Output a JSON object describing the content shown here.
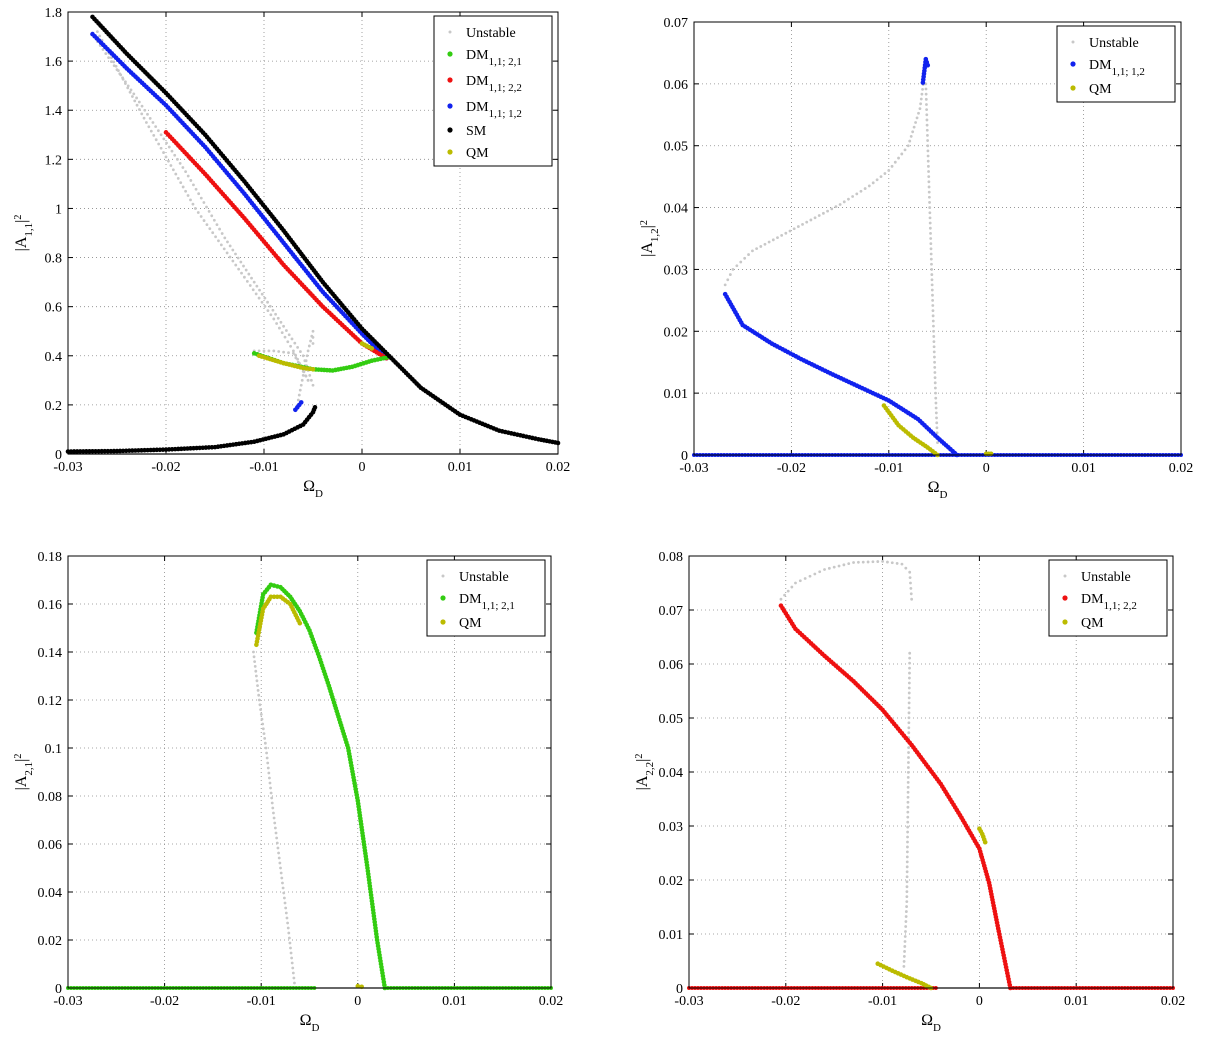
{
  "colors": {
    "unstable": "#c8c8c8",
    "dm_21": "#33cc11",
    "dm_22": "#ee1111",
    "dm_12": "#1122ee",
    "sm": "#000000",
    "qm": "#bbbb00"
  },
  "chart_data": [
    {
      "type": "scatter",
      "xlim": [
        -0.03,
        0.02
      ],
      "ylim": [
        0,
        1.8
      ],
      "x_ticks": [
        "-0.03",
        "-0.02",
        "-0.01",
        "0",
        "0.01",
        "0.02"
      ],
      "y_ticks": [
        "0",
        "0.2",
        "0.4",
        "0.6",
        "0.8",
        "1",
        "1.2",
        "1.4",
        "1.6",
        "1.8"
      ],
      "ylabel": {
        "pre": "|A",
        "sub": "1,1",
        "post": "|",
        "sup": "2"
      },
      "xlabel": {
        "pre": "Ω",
        "sub": "D"
      },
      "grid": true,
      "legend_position": "top-right",
      "legend": [
        {
          "pre": "Unstable",
          "sub": "",
          "color": "#c8c8c8",
          "marker": "small"
        },
        {
          "pre": "DM",
          "sub": "1,1; 2,1",
          "color": "#33cc11",
          "marker": "dot"
        },
        {
          "pre": "DM",
          "sub": "1,1; 2,2",
          "color": "#ee1111",
          "marker": "dot"
        },
        {
          "pre": "DM",
          "sub": "1,1; 1,2",
          "color": "#1122ee",
          "marker": "dot"
        },
        {
          "pre": "SM",
          "sub": "",
          "color": "#000000",
          "marker": "dot"
        },
        {
          "pre": "QM",
          "sub": "",
          "color": "#bbbb00",
          "marker": "dot"
        }
      ],
      "series": [
        {
          "color": "#c8c8c8",
          "size": 1.4,
          "x": [
            -0.027,
            -0.022,
            -0.017,
            -0.012,
            -0.009,
            -0.007,
            -0.0055
          ],
          "y": [
            1.72,
            1.35,
            1.0,
            0.72,
            0.55,
            0.42,
            0.3
          ]
        },
        {
          "color": "#c8c8c8",
          "size": 1.4,
          "x": [
            -0.027,
            -0.023,
            -0.018,
            -0.014,
            -0.011,
            -0.008,
            -0.006,
            -0.005
          ],
          "y": [
            1.68,
            1.45,
            1.15,
            0.88,
            0.7,
            0.52,
            0.4,
            0.28
          ]
        },
        {
          "color": "#c8c8c8",
          "size": 1.4,
          "x": [
            -0.011,
            -0.009,
            -0.007,
            -0.0055
          ],
          "y": [
            0.42,
            0.42,
            0.41,
            0.3
          ]
        },
        {
          "color": "#c8c8c8",
          "size": 1.4,
          "x": [
            -0.0065,
            -0.006,
            -0.0055,
            -0.005,
            -0.005
          ],
          "y": [
            0.22,
            0.32,
            0.42,
            0.5,
            0.45
          ]
        },
        {
          "color": "#1122ee",
          "size": 2.3,
          "x": [
            -0.0275,
            -0.024,
            -0.02,
            -0.016,
            -0.012,
            -0.008,
            -0.004,
            0.0,
            0.0025
          ],
          "y": [
            1.71,
            1.57,
            1.42,
            1.25,
            1.06,
            0.86,
            0.66,
            0.49,
            0.39
          ]
        },
        {
          "color": "#1122ee",
          "size": 2.3,
          "x": [
            -0.0068,
            -0.0062
          ],
          "y": [
            0.18,
            0.21
          ]
        },
        {
          "color": "#ee1111",
          "size": 2.3,
          "x": [
            -0.02,
            -0.016,
            -0.012,
            -0.008,
            -0.004,
            0.0,
            0.0025
          ],
          "y": [
            1.31,
            1.14,
            0.96,
            0.77,
            0.6,
            0.45,
            0.39
          ]
        },
        {
          "color": "#33cc11",
          "size": 2.3,
          "x": [
            -0.011,
            -0.008,
            -0.005,
            -0.003,
            -0.001,
            0.001,
            0.0028
          ],
          "y": [
            0.41,
            0.37,
            0.345,
            0.34,
            0.355,
            0.38,
            0.395
          ]
        },
        {
          "color": "#bbbb00",
          "size": 2.3,
          "x": [
            -0.0105,
            -0.008,
            -0.006,
            -0.005
          ],
          "y": [
            0.4,
            0.37,
            0.35,
            0.345
          ]
        },
        {
          "color": "#bbbb00",
          "size": 2.3,
          "x": [
            0.0,
            0.0005,
            0.001
          ],
          "y": [
            0.45,
            0.44,
            0.43
          ]
        },
        {
          "color": "#000000",
          "size": 2.3,
          "x": [
            -0.0275,
            -0.024,
            -0.02,
            -0.016,
            -0.012,
            -0.008,
            -0.004,
            0.0,
            0.003,
            0.006,
            0.01,
            0.014,
            0.018,
            0.02
          ],
          "y": [
            1.78,
            1.63,
            1.47,
            1.3,
            1.11,
            0.91,
            0.7,
            0.51,
            0.39,
            0.27,
            0.16,
            0.095,
            0.06,
            0.045
          ]
        },
        {
          "color": "#000000",
          "size": 2.3,
          "x": [
            -0.03,
            -0.025,
            -0.02,
            -0.015,
            -0.011,
            -0.008,
            -0.006,
            -0.005,
            -0.0048
          ],
          "y": [
            0.01,
            0.012,
            0.018,
            0.028,
            0.05,
            0.08,
            0.12,
            0.17,
            0.19
          ]
        }
      ]
    },
    {
      "type": "scatter",
      "xlim": [
        -0.03,
        0.02
      ],
      "ylim": [
        0,
        0.07
      ],
      "x_ticks": [
        "-0.03",
        "-0.02",
        "-0.01",
        "0",
        "0.01",
        "0.02"
      ],
      "y_ticks": [
        "0",
        "0.01",
        "0.02",
        "0.03",
        "0.04",
        "0.05",
        "0.06",
        "0.07"
      ],
      "ylabel": {
        "pre": "|A",
        "sub": "1,2",
        "post": "|",
        "sup": "2"
      },
      "xlabel": {
        "pre": "Ω",
        "sub": "D"
      },
      "grid": true,
      "legend_position": "top-right",
      "legend": [
        {
          "pre": "Unstable",
          "sub": "",
          "color": "#c8c8c8",
          "marker": "small"
        },
        {
          "pre": "DM",
          "sub": "1,1; 1,2",
          "color": "#1122ee",
          "marker": "dot"
        },
        {
          "pre": "QM",
          "sub": "",
          "color": "#bbbb00",
          "marker": "dot"
        }
      ],
      "series": [
        {
          "color": "#c8c8c8",
          "size": 1.4,
          "x": [
            -0.0268,
            -0.026,
            -0.024,
            -0.021,
            -0.018,
            -0.015,
            -0.012,
            -0.01,
            -0.008,
            -0.0068,
            -0.0062
          ],
          "y": [
            0.0275,
            0.03,
            0.033,
            0.0355,
            0.038,
            0.0405,
            0.0435,
            0.046,
            0.05,
            0.056,
            0.063
          ]
        },
        {
          "color": "#c8c8c8",
          "size": 1.4,
          "x": [
            -0.0062,
            -0.006,
            -0.0058,
            -0.0056,
            -0.0054,
            -0.0052,
            -0.005
          ],
          "y": [
            0.06,
            0.05,
            0.04,
            0.03,
            0.02,
            0.01,
            0.002
          ]
        },
        {
          "color": "#1122ee",
          "size": 2.3,
          "x": [
            -0.0268,
            -0.025,
            -0.022,
            -0.019,
            -0.016,
            -0.013,
            -0.01,
            -0.007,
            -0.005,
            -0.003
          ],
          "y": [
            0.026,
            0.021,
            0.018,
            0.0155,
            0.0132,
            0.011,
            0.0088,
            0.0058,
            0.0028,
            0.0
          ]
        },
        {
          "color": "#1122ee",
          "size": 2.3,
          "x": [
            -0.0065,
            -0.0062,
            -0.006
          ],
          "y": [
            0.0602,
            0.064,
            0.063
          ]
        },
        {
          "color": "#1122ee",
          "size": 2.0,
          "x": [
            -0.03,
            0.02
          ],
          "y": [
            0.0,
            0.0
          ]
        },
        {
          "color": "#bbbb00",
          "size": 2.3,
          "x": [
            -0.0105,
            -0.009,
            -0.0075,
            -0.006,
            -0.005
          ],
          "y": [
            0.008,
            0.0048,
            0.0028,
            0.0012,
            0.0
          ]
        },
        {
          "color": "#bbbb00",
          "size": 2.3,
          "x": [
            0.0,
            0.0005
          ],
          "y": [
            0.0002,
            0.0002
          ]
        }
      ]
    },
    {
      "type": "scatter",
      "xlim": [
        -0.03,
        0.02
      ],
      "ylim": [
        0,
        0.18
      ],
      "x_ticks": [
        "-0.03",
        "-0.02",
        "-0.01",
        "0",
        "0.01",
        "0.02"
      ],
      "y_ticks": [
        "0",
        "0.02",
        "0.04",
        "0.06",
        "0.08",
        "0.1",
        "0.12",
        "0.14",
        "0.16",
        "0.18"
      ],
      "ylabel": {
        "pre": "|A",
        "sub": "2,1",
        "post": "|",
        "sup": "2"
      },
      "xlabel": {
        "pre": "Ω",
        "sub": "D"
      },
      "grid": true,
      "legend_position": "top-right",
      "legend": [
        {
          "pre": "Unstable",
          "sub": "",
          "color": "#c8c8c8",
          "marker": "small"
        },
        {
          "pre": "DM",
          "sub": "1,1; 2,1",
          "color": "#33cc11",
          "marker": "dot"
        },
        {
          "pre": "QM",
          "sub": "",
          "color": "#bbbb00",
          "marker": "dot"
        }
      ],
      "series": [
        {
          "color": "#c8c8c8",
          "size": 1.4,
          "x": [
            -0.0108,
            -0.0102,
            -0.0095,
            -0.0088,
            -0.008,
            -0.0072,
            -0.0065
          ],
          "y": [
            0.14,
            0.12,
            0.1,
            0.075,
            0.05,
            0.025,
            0.0
          ]
        },
        {
          "color": "#33cc11",
          "size": 2.3,
          "x": [
            -0.0105,
            -0.0098,
            -0.009,
            -0.008,
            -0.007,
            -0.006,
            -0.005,
            -0.004,
            -0.003,
            -0.002,
            -0.001,
            0.0,
            0.001,
            0.002,
            0.0028
          ],
          "y": [
            0.148,
            0.164,
            0.168,
            0.167,
            0.163,
            0.157,
            0.149,
            0.138,
            0.126,
            0.113,
            0.1,
            0.078,
            0.05,
            0.02,
            0.0
          ]
        },
        {
          "color": "#33cc11",
          "size": 2.0,
          "x": [
            -0.03,
            -0.0045
          ],
          "y": [
            0.0,
            0.0
          ]
        },
        {
          "color": "#33cc11",
          "size": 2.0,
          "x": [
            0.0028,
            0.02
          ],
          "y": [
            0.0,
            0.0
          ]
        },
        {
          "color": "#bbbb00",
          "size": 2.3,
          "x": [
            -0.0105,
            -0.0098,
            -0.009,
            -0.008,
            -0.007,
            -0.006
          ],
          "y": [
            0.143,
            0.158,
            0.163,
            0.163,
            0.16,
            0.152
          ]
        },
        {
          "color": "#bbbb00",
          "size": 2.3,
          "x": [
            0.0,
            0.0004
          ],
          "y": [
            0.0008,
            0.0005
          ]
        }
      ]
    },
    {
      "type": "scatter",
      "xlim": [
        -0.03,
        0.02
      ],
      "ylim": [
        0,
        0.08
      ],
      "x_ticks": [
        "-0.03",
        "-0.02",
        "-0.01",
        "0",
        "0.01",
        "0.02"
      ],
      "y_ticks": [
        "0",
        "0.01",
        "0.02",
        "0.03",
        "0.04",
        "0.05",
        "0.06",
        "0.07",
        "0.08"
      ],
      "ylabel": {
        "pre": "|A",
        "sub": "2,2",
        "post": "|",
        "sup": "2"
      },
      "xlabel": {
        "pre": "Ω",
        "sub": "D"
      },
      "grid": true,
      "legend_position": "top-right",
      "legend": [
        {
          "pre": "Unstable",
          "sub": "",
          "color": "#c8c8c8",
          "marker": "small"
        },
        {
          "pre": "DM",
          "sub": "1,1; 2,2",
          "color": "#ee1111",
          "marker": "dot"
        },
        {
          "pre": "QM",
          "sub": "",
          "color": "#bbbb00",
          "marker": "dot"
        }
      ],
      "series": [
        {
          "color": "#c8c8c8",
          "size": 1.4,
          "x": [
            -0.0205,
            -0.019,
            -0.016,
            -0.013,
            -0.01,
            -0.008,
            -0.0072,
            -0.007
          ],
          "y": [
            0.072,
            0.075,
            0.0775,
            0.0788,
            0.079,
            0.0785,
            0.077,
            0.072
          ]
        },
        {
          "color": "#c8c8c8",
          "size": 1.4,
          "x": [
            -0.0072,
            -0.0075,
            -0.0078
          ],
          "y": [
            0.062,
            0.016,
            0.004
          ]
        },
        {
          "color": "#ee1111",
          "size": 2.3,
          "x": [
            -0.0205,
            -0.019,
            -0.016,
            -0.013,
            -0.01,
            -0.007,
            -0.004,
            -0.002,
            0.0,
            0.001,
            0.002,
            0.0032
          ],
          "y": [
            0.0708,
            0.0665,
            0.0615,
            0.0568,
            0.0515,
            0.045,
            0.0378,
            0.032,
            0.0258,
            0.0195,
            0.0105,
            0.0
          ]
        },
        {
          "color": "#ee1111",
          "size": 2.0,
          "x": [
            -0.03,
            -0.0045
          ],
          "y": [
            0.0,
            0.0
          ]
        },
        {
          "color": "#ee1111",
          "size": 2.0,
          "x": [
            0.0032,
            0.02
          ],
          "y": [
            0.0,
            0.0
          ]
        },
        {
          "color": "#bbbb00",
          "size": 2.3,
          "x": [
            -0.0105,
            -0.009,
            -0.0075,
            -0.006,
            -0.005
          ],
          "y": [
            0.0045,
            0.0032,
            0.002,
            0.0009,
            0.0
          ]
        },
        {
          "color": "#bbbb00",
          "size": 2.3,
          "x": [
            0.0,
            0.0003,
            0.0006
          ],
          "y": [
            0.0295,
            0.0285,
            0.027
          ]
        }
      ]
    }
  ]
}
